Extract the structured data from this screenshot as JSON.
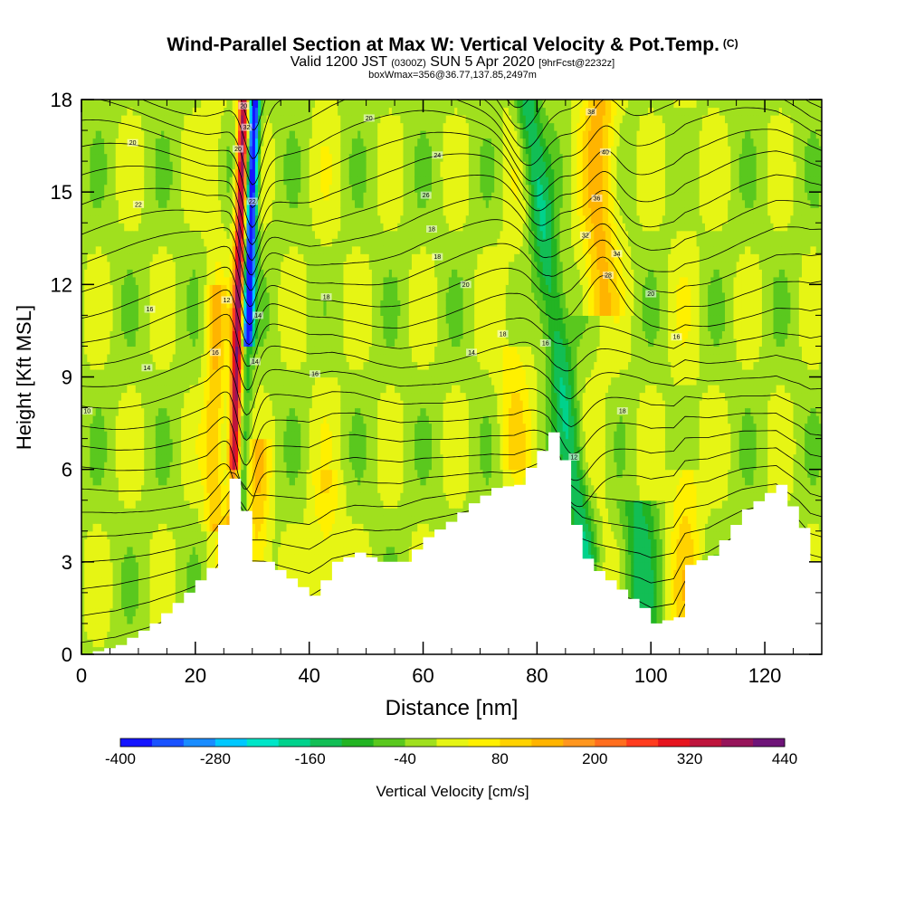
{
  "title": {
    "main": "Wind-Parallel Section at Max W: Vertical Velocity & Pot.Temp.",
    "copyright": "(C)",
    "valid_a": "Valid 1200 JST",
    "valid_zulu": "(0300Z)",
    "valid_b": "SUN 5 Apr 2020",
    "forecast": "[9hrFcst@2232z]",
    "box_info": "boxWmax=356@36.77,137.85,2497m"
  },
  "chart_data": {
    "type": "heatmap",
    "xlabel": "Distance [nm]",
    "ylabel": "Height [Kft MSL]",
    "xlim": [
      0,
      130
    ],
    "ylim": [
      0,
      18
    ],
    "x_ticks": [
      0,
      20,
      40,
      60,
      80,
      100,
      120
    ],
    "y_ticks": [
      0,
      3,
      6,
      9,
      12,
      15,
      18
    ],
    "colorbar": {
      "label": "Vertical Velocity [cm/s]",
      "min": -400,
      "max": 440,
      "step": 40,
      "tick_labels": [
        "-400",
        "-280",
        "-160",
        "-40",
        "80",
        "200",
        "320",
        "440"
      ],
      "colors": [
        "#1414ff",
        "#1a52ff",
        "#1a8cff",
        "#00c8ff",
        "#00e6c8",
        "#00d28c",
        "#12be55",
        "#23b423",
        "#5ac81e",
        "#a0e01e",
        "#e6f514",
        "#fff000",
        "#ffd200",
        "#ffb400",
        "#ff961e",
        "#ff6e1e",
        "#ff3c1e",
        "#e6141e",
        "#be143c",
        "#96145a",
        "#6e1478"
      ]
    },
    "terrain_profile": {
      "x": [
        0,
        6,
        12,
        18,
        22,
        24,
        26,
        27,
        29,
        30,
        32,
        35,
        40,
        42,
        44,
        48,
        52,
        56,
        60,
        64,
        68,
        72,
        76,
        80,
        82,
        84,
        86,
        88,
        90,
        94,
        98,
        100,
        104,
        106,
        110,
        116,
        122,
        126,
        128,
        130
      ],
      "y": [
        0,
        0.3,
        1.0,
        2.0,
        2.8,
        4.2,
        5.7,
        5.5,
        3.8,
        3.0,
        3.0,
        2.6,
        1.9,
        2.4,
        3.0,
        3.3,
        3.0,
        3.0,
        3.8,
        4.3,
        4.9,
        5.4,
        5.5,
        6.6,
        7.2,
        6.3,
        4.2,
        3.1,
        2.7,
        2.1,
        1.5,
        1.0,
        1.2,
        2.9,
        3.2,
        4.7,
        5.5,
        4.1,
        3.0,
        2.8
      ]
    },
    "contour_labels": [
      {
        "text": "10",
        "x": 1,
        "y": 7.9
      },
      {
        "text": "14",
        "x": 11.5,
        "y": 9.3
      },
      {
        "text": "16",
        "x": 12,
        "y": 11.2
      },
      {
        "text": "20",
        "x": 9,
        "y": 16.6
      },
      {
        "text": "22",
        "x": 10,
        "y": 14.6
      },
      {
        "text": "16",
        "x": 23.5,
        "y": 9.8
      },
      {
        "text": "12",
        "x": 25.5,
        "y": 11.5
      },
      {
        "text": "14",
        "x": 30.5,
        "y": 9.5
      },
      {
        "text": "14",
        "x": 31,
        "y": 11.0
      },
      {
        "text": "22",
        "x": 30,
        "y": 14.7
      },
      {
        "text": "20",
        "x": 27.5,
        "y": 16.4
      },
      {
        "text": "32",
        "x": 29,
        "y": 17.1
      },
      {
        "text": "20",
        "x": 28.5,
        "y": 17.8
      },
      {
        "text": "16",
        "x": 41,
        "y": 9.1
      },
      {
        "text": "18",
        "x": 43,
        "y": 11.6
      },
      {
        "text": "20",
        "x": 50.5,
        "y": 17.4
      },
      {
        "text": "24",
        "x": 62.5,
        "y": 16.2
      },
      {
        "text": "26",
        "x": 60.5,
        "y": 14.9
      },
      {
        "text": "18",
        "x": 61.5,
        "y": 13.8
      },
      {
        "text": "18",
        "x": 62.5,
        "y": 12.9
      },
      {
        "text": "20",
        "x": 67.5,
        "y": 12.0
      },
      {
        "text": "18",
        "x": 74,
        "y": 10.4
      },
      {
        "text": "14",
        "x": 68.5,
        "y": 9.8
      },
      {
        "text": "16",
        "x": 81.5,
        "y": 10.1
      },
      {
        "text": "12",
        "x": 86.5,
        "y": 6.4
      },
      {
        "text": "18",
        "x": 95,
        "y": 7.9
      },
      {
        "text": "38",
        "x": 89.5,
        "y": 17.6
      },
      {
        "text": "40",
        "x": 92,
        "y": 16.3
      },
      {
        "text": "36",
        "x": 90.5,
        "y": 14.8
      },
      {
        "text": "32",
        "x": 88.5,
        "y": 13.6
      },
      {
        "text": "34",
        "x": 94,
        "y": 13.0
      },
      {
        "text": "28",
        "x": 92.5,
        "y": 12.3
      },
      {
        "text": "20",
        "x": 100,
        "y": 11.7
      },
      {
        "text": "16",
        "x": 104.5,
        "y": 10.3
      }
    ]
  }
}
